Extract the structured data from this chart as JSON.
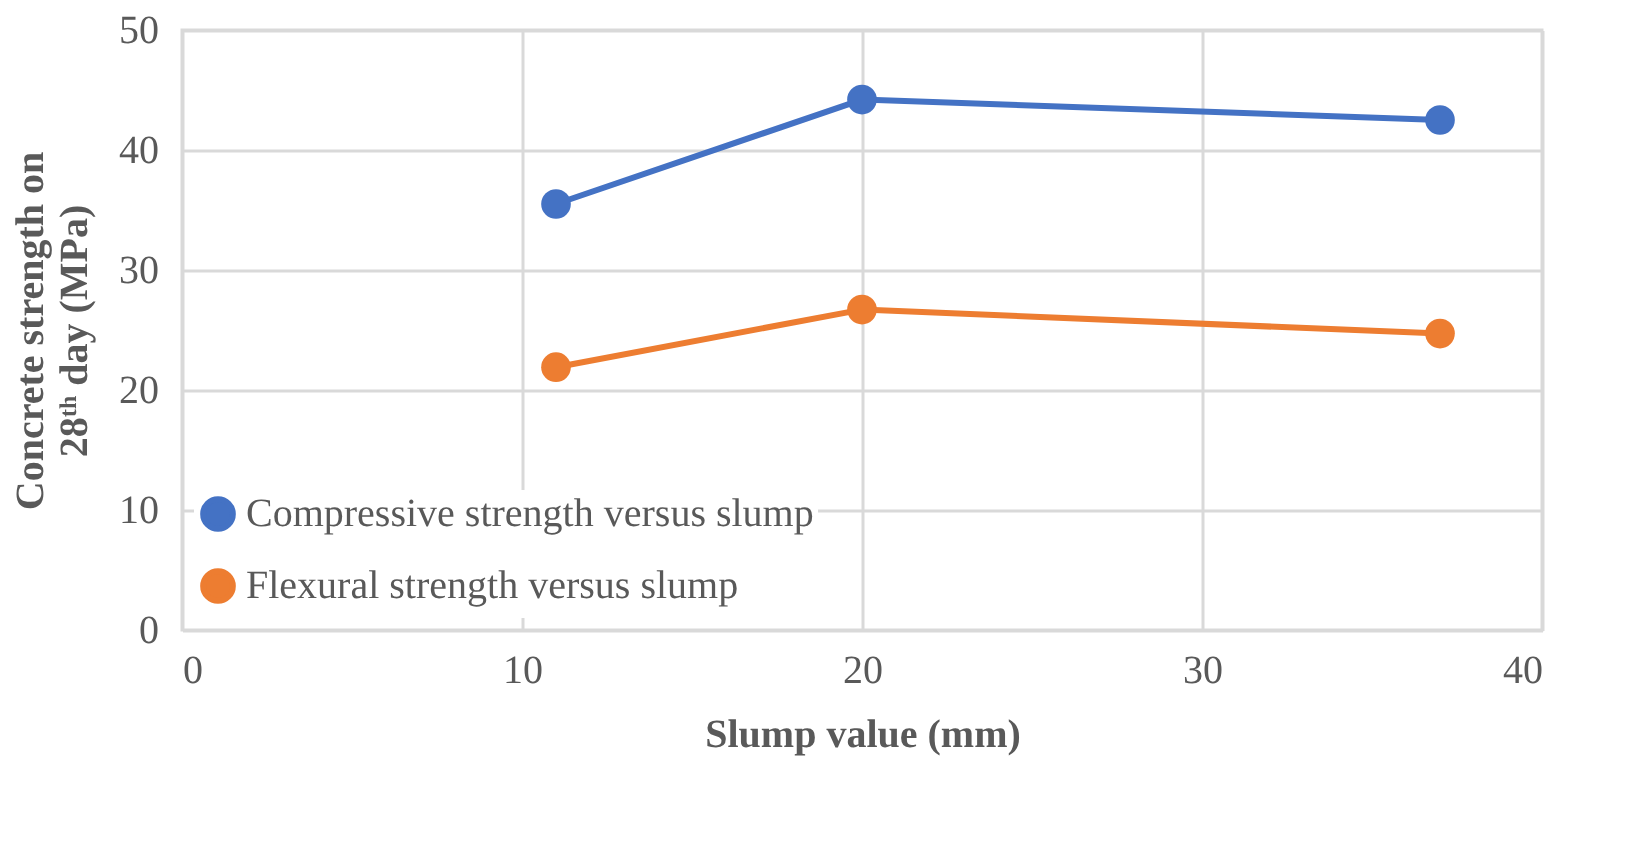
{
  "chart_data": {
    "type": "line",
    "xlabel": "Slump value (mm)",
    "ylabel": "Concrete strength on 28ᵗʰ day (MPa)",
    "x": [
      11,
      20,
      37
    ],
    "series": [
      {
        "name": "Compressive strength versus slump",
        "color": "#4472c4",
        "values": [
          35.5,
          44.2,
          42.5
        ]
      },
      {
        "name": "Flexural strength versus slump",
        "color": "#ed7d31",
        "values": [
          21.9,
          26.7,
          24.7
        ]
      }
    ],
    "xlim": [
      0,
      40
    ],
    "xticks": [
      0,
      10,
      20,
      30,
      40
    ],
    "ylim": [
      0,
      50
    ],
    "yticks": [
      0,
      10,
      20,
      30,
      40,
      50
    ],
    "grid": true,
    "legend": "bottom left",
    "marker": "circle",
    "line_style": "solid"
  }
}
